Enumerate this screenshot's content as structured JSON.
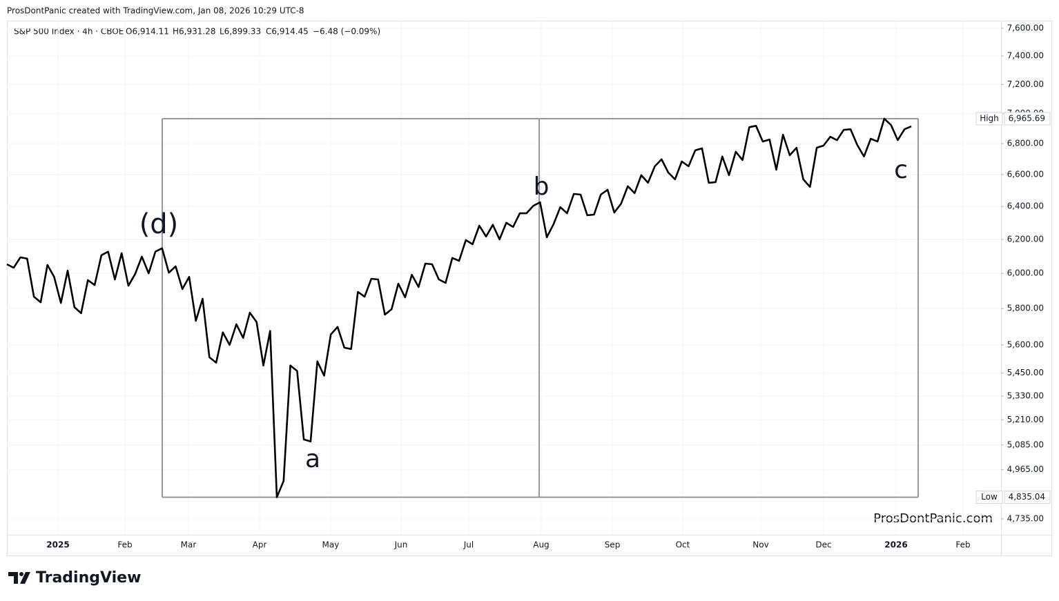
{
  "header": "ProsDontPanic created with TradingView.com, Jan 08, 2026 10:29 UTC-8",
  "watermark": "ProsDontPanic.com",
  "logo": "TradingView",
  "chart_data": {
    "type": "line",
    "symbol": "S&P 500 Index · 4h · CBOE",
    "ohlc": [
      "O6,914.11",
      "H6,931.28",
      "L6,899.33",
      "C6,914.45",
      "−6.48 (−0.09%)"
    ],
    "log_scale": true,
    "grid": true,
    "xlim": [
      0,
      147.3
    ],
    "ylim": [
      4663,
      7656
    ],
    "xticks": [
      {
        "value": 7.57,
        "label": "2025"
      },
      {
        "value": 17.49,
        "label": "Feb"
      },
      {
        "value": 26.9,
        "label": "Mar"
      },
      {
        "value": 37.44,
        "label": "Apr"
      },
      {
        "value": 47.97,
        "label": "May"
      },
      {
        "value": 58.41,
        "label": "Jun"
      },
      {
        "value": 68.43,
        "label": "Jul"
      },
      {
        "value": 79.17,
        "label": "Aug"
      },
      {
        "value": 89.71,
        "label": "Sep"
      },
      {
        "value": 100.14,
        "label": "Oct"
      },
      {
        "value": 111.7,
        "label": "Nov"
      },
      {
        "value": 121.01,
        "label": "Dec"
      },
      {
        "value": 131.75,
        "label": "2026"
      },
      {
        "value": 141.67,
        "label": "Feb"
      }
    ],
    "yticks": [
      {
        "value": 4735,
        "label": "4,735.00"
      },
      {
        "value": 4965,
        "label": "4,965.00"
      },
      {
        "value": 5085,
        "label": "5,085.00"
      },
      {
        "value": 5210,
        "label": "5,210.00"
      },
      {
        "value": 5330,
        "label": "5,330.00"
      },
      {
        "value": 5450,
        "label": "5,450.00"
      },
      {
        "value": 5600,
        "label": "5,600.00"
      },
      {
        "value": 5800,
        "label": "5,800.00"
      },
      {
        "value": 6000,
        "label": "6,000.00"
      },
      {
        "value": 6200,
        "label": "6,200.00"
      },
      {
        "value": 6400,
        "label": "6,400.00"
      },
      {
        "value": 6600,
        "label": "6,600.00"
      },
      {
        "value": 6800,
        "label": "6,800.00"
      },
      {
        "value": 7000,
        "label": "7,000.00"
      },
      {
        "value": 7200,
        "label": "7,200.00"
      },
      {
        "value": 7400,
        "label": "7,400.00"
      },
      {
        "value": 7600,
        "label": "7,600.00"
      }
    ],
    "series": [
      {
        "color": "#000000",
        "x": [
          0,
          1,
          2,
          3,
          4,
          5,
          6,
          7,
          8,
          9,
          10,
          11,
          12,
          13,
          14,
          15,
          16,
          17,
          18,
          19,
          20,
          21,
          22,
          23,
          24,
          25,
          26,
          27,
          28,
          29,
          30,
          31,
          32,
          33,
          34,
          35,
          36,
          37,
          38,
          39,
          40,
          41,
          42,
          43,
          44,
          45,
          46,
          47,
          48,
          49,
          50,
          51,
          52,
          53,
          54,
          55,
          56,
          57,
          58,
          59,
          60,
          61,
          62,
          63,
          64,
          65,
          66,
          67,
          68,
          69,
          70,
          71,
          72,
          73,
          74,
          75,
          76,
          77,
          78,
          79,
          80,
          81,
          82,
          83,
          84,
          85,
          86,
          87,
          88,
          89,
          90,
          91,
          92,
          93,
          94,
          95,
          96,
          97,
          98,
          99,
          100,
          101,
          102,
          103,
          104,
          105,
          106,
          107,
          108,
          109,
          110,
          111,
          112,
          113,
          114,
          115,
          116,
          117,
          118,
          119,
          120,
          121,
          122,
          123,
          124,
          125,
          126,
          127,
          128,
          129,
          130,
          131,
          132,
          133,
          134
        ],
        "values": [
          6053,
          6033,
          6094,
          6086,
          5867,
          5835,
          6049,
          5980,
          5831,
          6016,
          5808,
          5774,
          5961,
          5933,
          6106,
          6127,
          5965,
          6118,
          5929,
          5996,
          6098,
          6000,
          6127,
          6147,
          6004,
          6041,
          5910,
          5980,
          5732,
          5855,
          5534,
          5505,
          5668,
          5600,
          5713,
          5638,
          5777,
          5725,
          5490,
          5676,
          4835.04,
          4911,
          5490,
          5461,
          5112,
          5102,
          5512,
          5436,
          5657,
          5698,
          5585,
          5578,
          5894,
          5867,
          5969,
          5965,
          5766,
          5796,
          5941,
          5863,
          5992,
          5922,
          6057,
          6053,
          5965,
          5945,
          6090,
          6073,
          6196,
          6171,
          6283,
          6217,
          6288,
          6200,
          6300,
          6275,
          6358,
          6358,
          6404,
          6426,
          6213,
          6292,
          6396,
          6358,
          6478,
          6474,
          6346,
          6350,
          6474,
          6504,
          6363,
          6417,
          6526,
          6483,
          6596,
          6548,
          6653,
          6698,
          6613,
          6570,
          6684,
          6653,
          6756,
          6769,
          6548,
          6552,
          6716,
          6596,
          6747,
          6693,
          6909,
          6918,
          6814,
          6827,
          6631,
          6859,
          6724,
          6773,
          6570,
          6522,
          6773,
          6787,
          6845,
          6823,
          6891,
          6895,
          6791,
          6716,
          6832,
          6814,
          6965.69,
          6923,
          6823,
          6895,
          6914.45
        ]
      }
    ],
    "price_labels": [
      {
        "label": "High",
        "value": 6965.69,
        "value_label": "6,965.69"
      },
      {
        "label": "Low",
        "value": 4835.04,
        "value_label": "4,835.04"
      }
    ],
    "annotations": [
      {
        "text": "(d)",
        "color": "#1e9e8c"
      },
      {
        "text": "a",
        "color": "#e65100"
      },
      {
        "text": "b",
        "color": "#e65100"
      },
      {
        "text": "c",
        "color": "#e65100"
      }
    ]
  }
}
